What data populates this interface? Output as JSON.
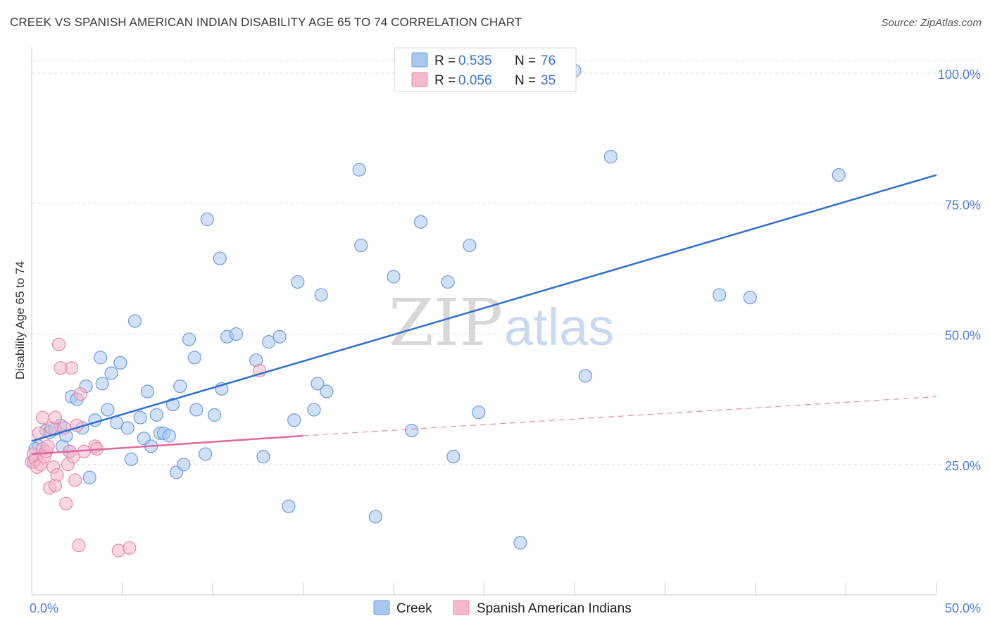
{
  "title": "CREEK VS SPANISH AMERICAN INDIAN DISABILITY AGE 65 TO 74 CORRELATION CHART",
  "source": "Source: ZipAtlas.com",
  "watermark": {
    "zip": "ZIP",
    "atlas": "atlas"
  },
  "legend": {
    "rows": [
      {
        "r_label": "R =",
        "r_value": "0.535",
        "n_label": "N =",
        "n_value": "76",
        "color": "#a9c8f0"
      },
      {
        "r_label": "R =",
        "r_value": "0.056",
        "n_label": "N =",
        "n_value": "35",
        "color": "#f6b8cc"
      }
    ]
  },
  "bottom_legend": [
    {
      "label": "Creek",
      "color": "#a9c8f0"
    },
    {
      "label": "Spanish American Indians",
      "color": "#f6b8cc"
    }
  ],
  "chart_data": {
    "type": "scatter",
    "title": "CREEK VS SPANISH AMERICAN INDIAN DISABILITY AGE 65 TO 74 CORRELATION CHART",
    "ylabel": "Disability Age 65 to 74",
    "xlabel": "",
    "xlim": [
      0,
      50
    ],
    "ylim": [
      0,
      105
    ],
    "x_tick_labels": [
      {
        "value": 0,
        "label": "0.0%"
      },
      {
        "value": 50,
        "label": "50.0%"
      }
    ],
    "y_tick_labels": [
      {
        "value": 25,
        "label": "25.0%"
      },
      {
        "value": 50,
        "label": "50.0%"
      },
      {
        "value": 75,
        "label": "75.0%"
      },
      {
        "value": 100,
        "label": "100.0%"
      }
    ],
    "grid": true,
    "legend_position": "top-center",
    "series": [
      {
        "name": "Creek",
        "color": "#a9c8f0",
        "edge": "#6d9be0",
        "trend": {
          "x": [
            0,
            50
          ],
          "y": [
            29.5,
            80.5
          ],
          "color": "#2e6fcf",
          "dashed_from": null
        },
        "points": [
          [
            0.1,
            25.5
          ],
          [
            0.4,
            28.5
          ],
          [
            0.8,
            31.5
          ],
          [
            1.0,
            31.2
          ],
          [
            1.6,
            32.5
          ],
          [
            1.7,
            28.5
          ],
          [
            1.9,
            30.5
          ],
          [
            2.2,
            38.0
          ],
          [
            2.5,
            37.5
          ],
          [
            2.8,
            32.0
          ],
          [
            3.0,
            40.0
          ],
          [
            3.2,
            22.5
          ],
          [
            3.5,
            33.5
          ],
          [
            3.8,
            45.5
          ],
          [
            3.9,
            40.5
          ],
          [
            4.2,
            35.5
          ],
          [
            4.4,
            42.5
          ],
          [
            4.7,
            33.0
          ],
          [
            4.9,
            44.5
          ],
          [
            5.3,
            32.0
          ],
          [
            5.5,
            26.0
          ],
          [
            5.7,
            52.5
          ],
          [
            6.0,
            34.0
          ],
          [
            6.2,
            30.0
          ],
          [
            6.4,
            39.0
          ],
          [
            6.6,
            28.5
          ],
          [
            6.9,
            34.5
          ],
          [
            7.1,
            31.0
          ],
          [
            7.3,
            31.0
          ],
          [
            7.6,
            30.5
          ],
          [
            7.8,
            36.5
          ],
          [
            8.0,
            23.5
          ],
          [
            8.2,
            40.0
          ],
          [
            8.4,
            25.0
          ],
          [
            8.7,
            49.0
          ],
          [
            9.0,
            45.5
          ],
          [
            9.1,
            35.5
          ],
          [
            9.6,
            27.0
          ],
          [
            9.7,
            72.0
          ],
          [
            10.1,
            34.5
          ],
          [
            10.4,
            64.5
          ],
          [
            10.5,
            39.5
          ],
          [
            10.8,
            49.5
          ],
          [
            11.3,
            50.0
          ],
          [
            12.4,
            45.0
          ],
          [
            12.8,
            26.5
          ],
          [
            13.1,
            48.5
          ],
          [
            13.7,
            49.5
          ],
          [
            14.2,
            17.0
          ],
          [
            14.5,
            33.5
          ],
          [
            14.7,
            60.0
          ],
          [
            15.6,
            35.5
          ],
          [
            15.8,
            40.5
          ],
          [
            16.0,
            57.5
          ],
          [
            16.3,
            39.0
          ],
          [
            18.1,
            81.5
          ],
          [
            18.2,
            67.0
          ],
          [
            19.0,
            15.0
          ],
          [
            20.0,
            61.0
          ],
          [
            21.0,
            31.5
          ],
          [
            21.5,
            71.5
          ],
          [
            23.0,
            60.0
          ],
          [
            23.3,
            26.5
          ],
          [
            24.2,
            67.0
          ],
          [
            24.7,
            35.0
          ],
          [
            27.0,
            10.0
          ],
          [
            30.6,
            42.0
          ],
          [
            32.0,
            84.0
          ],
          [
            38.0,
            57.5
          ],
          [
            39.7,
            57.0
          ],
          [
            44.6,
            80.5
          ],
          [
            24.0,
            101.5
          ],
          [
            30.0,
            100.5
          ],
          [
            0.2,
            28.0
          ],
          [
            1.3,
            31.8
          ],
          [
            2.1,
            27.5
          ]
        ]
      },
      {
        "name": "Spanish American Indians",
        "color": "#f6b8cc",
        "edge": "#e58aa8",
        "trend": {
          "x": [
            0,
            15
          ],
          "y": [
            27.0,
            30.5
          ],
          "color": "#e0689a",
          "dashed_to": [
            50,
            38.0
          ]
        },
        "points": [
          [
            0.0,
            25.5
          ],
          [
            0.1,
            27.0
          ],
          [
            0.2,
            26.0
          ],
          [
            0.3,
            24.5
          ],
          [
            0.4,
            31.0
          ],
          [
            0.5,
            25.0
          ],
          [
            0.6,
            28.0
          ],
          [
            0.6,
            34.0
          ],
          [
            0.7,
            26.5
          ],
          [
            0.8,
            27.5
          ],
          [
            0.9,
            28.5
          ],
          [
            1.0,
            20.5
          ],
          [
            1.1,
            32.0
          ],
          [
            1.2,
            24.5
          ],
          [
            1.3,
            34.0
          ],
          [
            1.3,
            21.0
          ],
          [
            1.4,
            23.0
          ],
          [
            1.5,
            48.0
          ],
          [
            1.6,
            43.5
          ],
          [
            1.8,
            32.0
          ],
          [
            1.9,
            17.5
          ],
          [
            2.0,
            25.0
          ],
          [
            2.1,
            27.5
          ],
          [
            2.2,
            43.5
          ],
          [
            2.3,
            26.5
          ],
          [
            2.4,
            22.0
          ],
          [
            2.5,
            32.5
          ],
          [
            2.6,
            9.5
          ],
          [
            2.7,
            38.5
          ],
          [
            2.9,
            27.5
          ],
          [
            3.5,
            28.5
          ],
          [
            3.6,
            28.0
          ],
          [
            4.8,
            8.5
          ],
          [
            5.4,
            9.0
          ],
          [
            12.6,
            43.0
          ]
        ]
      }
    ]
  }
}
